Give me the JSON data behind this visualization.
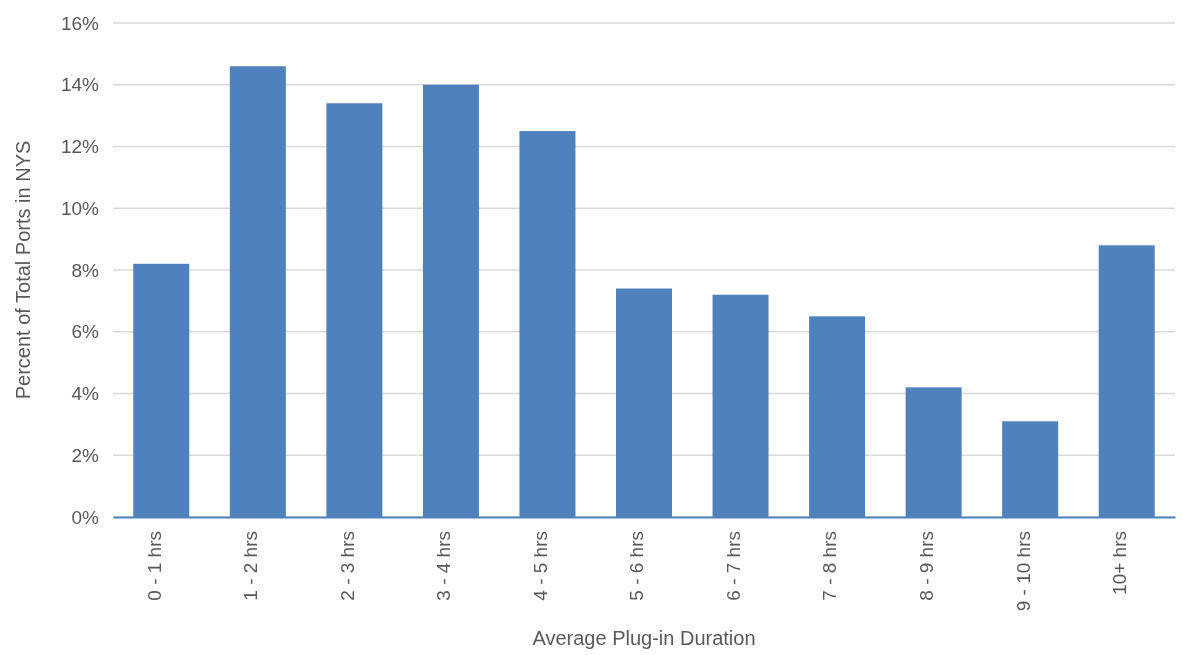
{
  "chart_data": {
    "type": "bar",
    "xlabel": "Average Plug-in Duration",
    "ylabel": "Percent of Total Ports in NYS",
    "categories": [
      "0 - 1 hrs",
      "1 - 2 hrs",
      "2 - 3 hrs",
      "3 - 4 hrs",
      "4 - 5 hrs",
      "5 - 6 hrs",
      "6 - 7 hrs",
      "7 - 8 hrs",
      "8 - 9 hrs",
      "9 - 10 hrs",
      "10+ hrs"
    ],
    "values": [
      8.2,
      14.6,
      13.4,
      14.0,
      12.5,
      7.4,
      7.2,
      6.5,
      4.2,
      3.1,
      8.8
    ],
    "color": "#4f81bd",
    "ylim": [
      0,
      16
    ],
    "yticks": [
      {
        "value": 0,
        "label": "0%"
      },
      {
        "value": 2,
        "label": "2%"
      },
      {
        "value": 4,
        "label": "4%"
      },
      {
        "value": 6,
        "label": "6%"
      },
      {
        "value": 8,
        "label": "8%"
      },
      {
        "value": 10,
        "label": "10%"
      },
      {
        "value": 12,
        "label": "12%"
      },
      {
        "value": 14,
        "label": "14%"
      },
      {
        "value": 16,
        "label": "16%"
      }
    ],
    "grid": "y"
  }
}
